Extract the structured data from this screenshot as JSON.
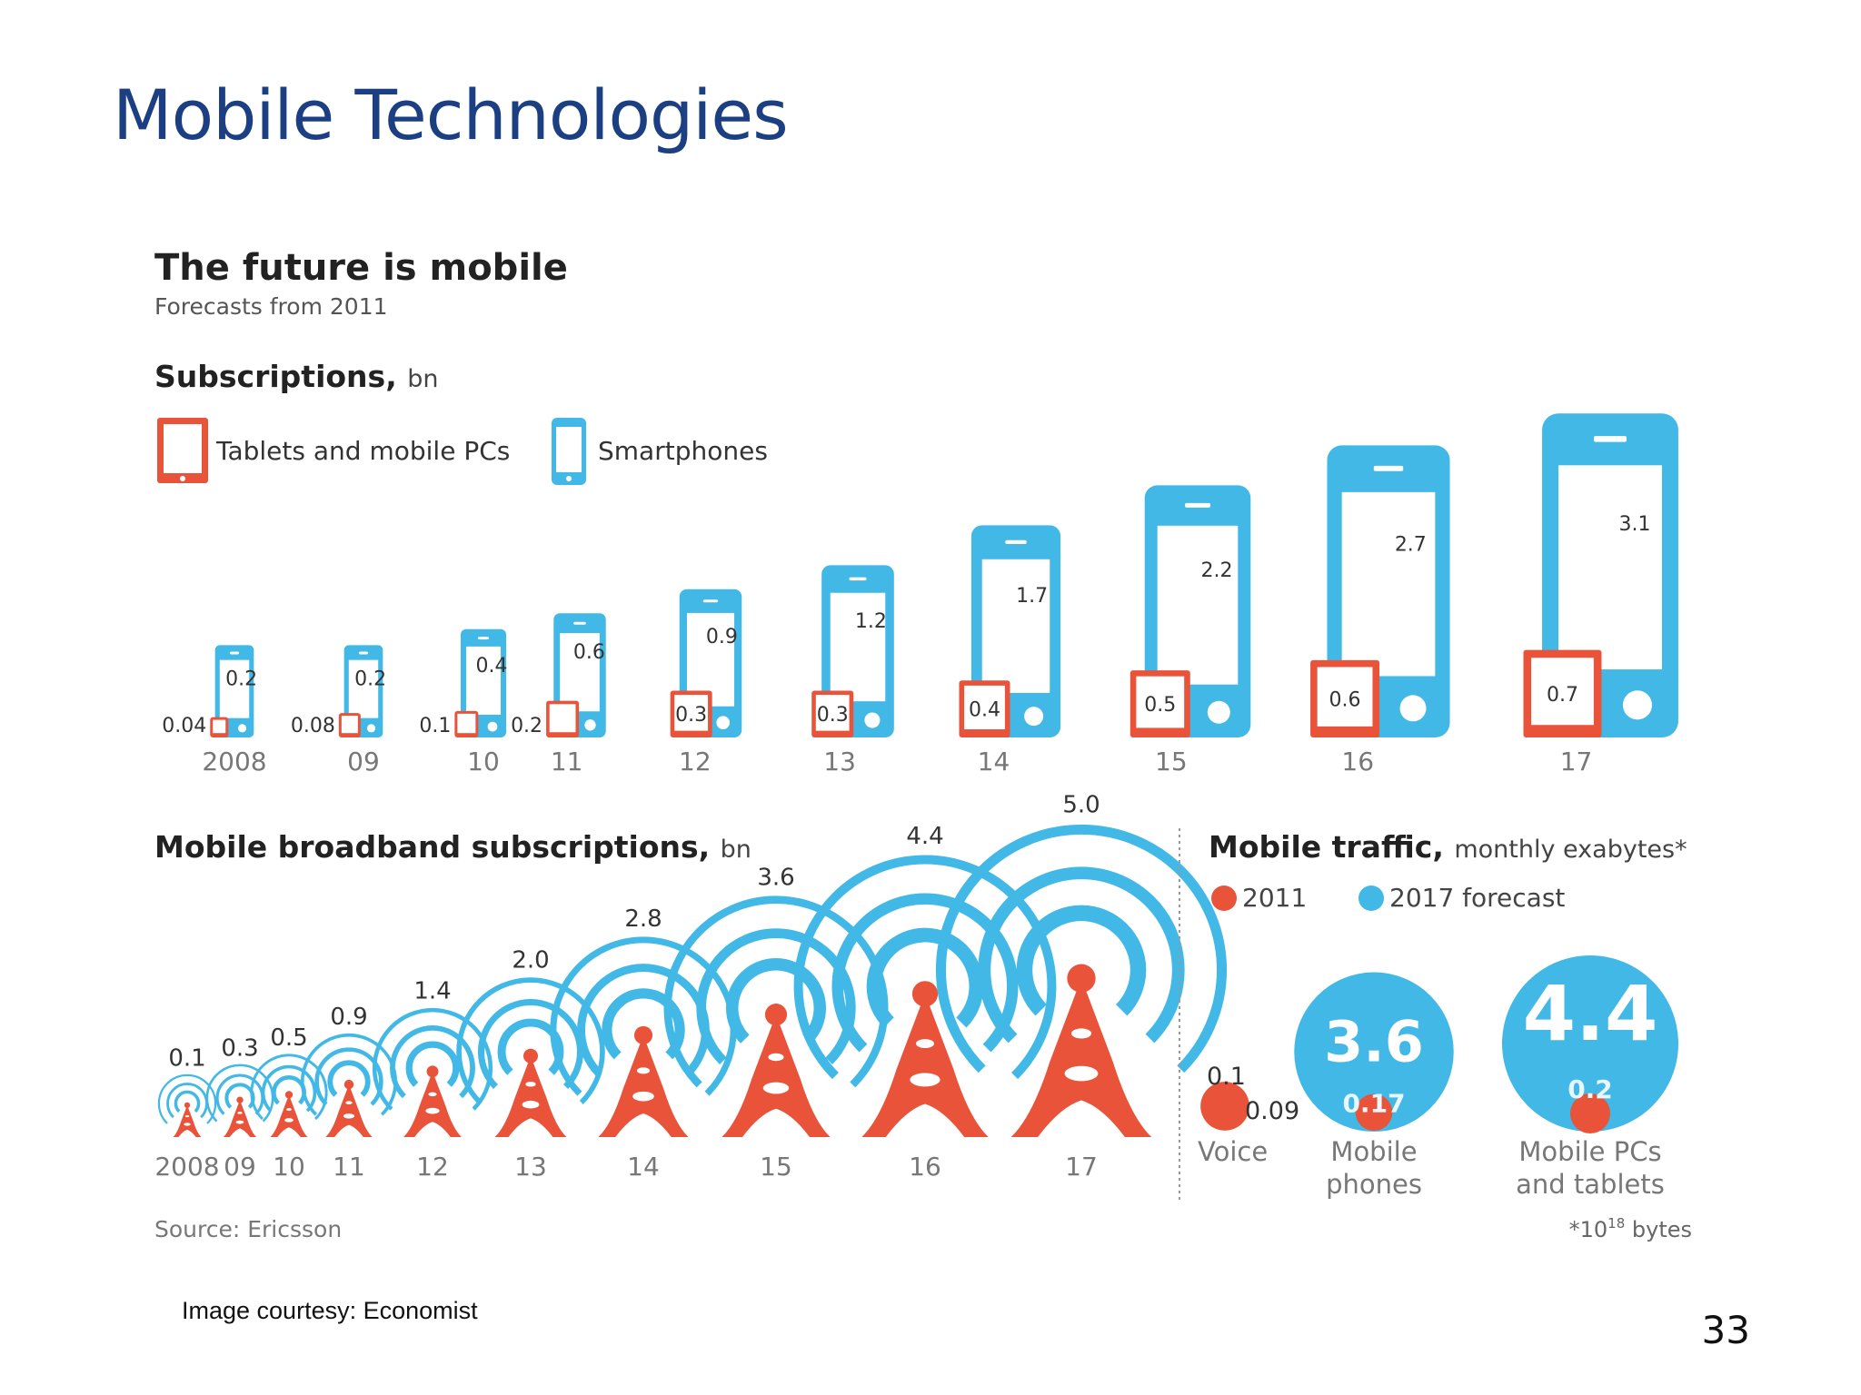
{
  "slide": {
    "title": "Mobile Technologies",
    "courtesy": "Image courtesy: Economist",
    "page_number": "33"
  },
  "colors": {
    "red": "#e8533a",
    "blue": "#41b8e5",
    "text": "#333333",
    "grey": "#777777",
    "title": "#1b3f82"
  },
  "infographic": {
    "title": "The future is mobile",
    "subtitle": "Forecasts from 2011",
    "source": "Source: Ericsson",
    "footnote_prefix": "*10",
    "footnote_exp": "18",
    "footnote_suffix": " bytes"
  },
  "chart_data": [
    {
      "type": "bar",
      "title": "Subscriptions",
      "unit": "bn",
      "categories": [
        "2008",
        "09",
        "10",
        "11",
        "12",
        "13",
        "14",
        "15",
        "16",
        "17"
      ],
      "series": [
        {
          "name": "Tablets and mobile PCs",
          "color": "#e8533a",
          "labels": [
            "0.04",
            "0.08",
            "0.1",
            "0.2",
            "0.3",
            "0.3",
            "0.4",
            "0.5",
            "0.6",
            "0.7"
          ],
          "values": [
            0.04,
            0.08,
            0.1,
            0.2,
            0.3,
            0.3,
            0.4,
            0.5,
            0.6,
            0.7
          ]
        },
        {
          "name": "Smartphones",
          "color": "#41b8e5",
          "labels": [
            "0.2",
            "0.2",
            "0.4",
            "0.6",
            "0.9",
            "1.2",
            "1.7",
            "2.2",
            "2.7",
            "3.1"
          ],
          "values": [
            0.2,
            0.2,
            0.4,
            0.6,
            0.9,
            1.2,
            1.7,
            2.2,
            2.7,
            3.1
          ]
        }
      ]
    },
    {
      "type": "bar",
      "title": "Mobile broadband subscriptions",
      "unit": "bn",
      "categories": [
        "2008",
        "09",
        "10",
        "11",
        "12",
        "13",
        "14",
        "15",
        "16",
        "17"
      ],
      "labels": [
        "0.1",
        "0.3",
        "0.5",
        "0.9",
        "1.4",
        "2.0",
        "2.8",
        "3.6",
        "4.4",
        "5.0"
      ],
      "values": [
        0.1,
        0.3,
        0.5,
        0.9,
        1.4,
        2.0,
        2.8,
        3.6,
        4.4,
        5.0
      ]
    },
    {
      "type": "bar",
      "title": "Mobile traffic",
      "unit": "monthly exabytes*",
      "categories": [
        "Voice",
        "Mobile phones",
        "Mobile PCs and tablets"
      ],
      "category_lines": [
        [
          "Voice"
        ],
        [
          "Mobile",
          "phones"
        ],
        [
          "Mobile PCs",
          "and tablets"
        ]
      ],
      "series": [
        {
          "name": "2011",
          "color": "#e8533a",
          "labels": [
            "0.09",
            "0.17",
            "0.2"
          ],
          "values": [
            0.09,
            0.17,
            0.2
          ]
        },
        {
          "name": "2017 forecast",
          "color": "#41b8e5",
          "labels": [
            "0.1",
            "3.6",
            "4.4"
          ],
          "values": [
            0.1,
            3.6,
            4.4
          ]
        }
      ]
    }
  ]
}
